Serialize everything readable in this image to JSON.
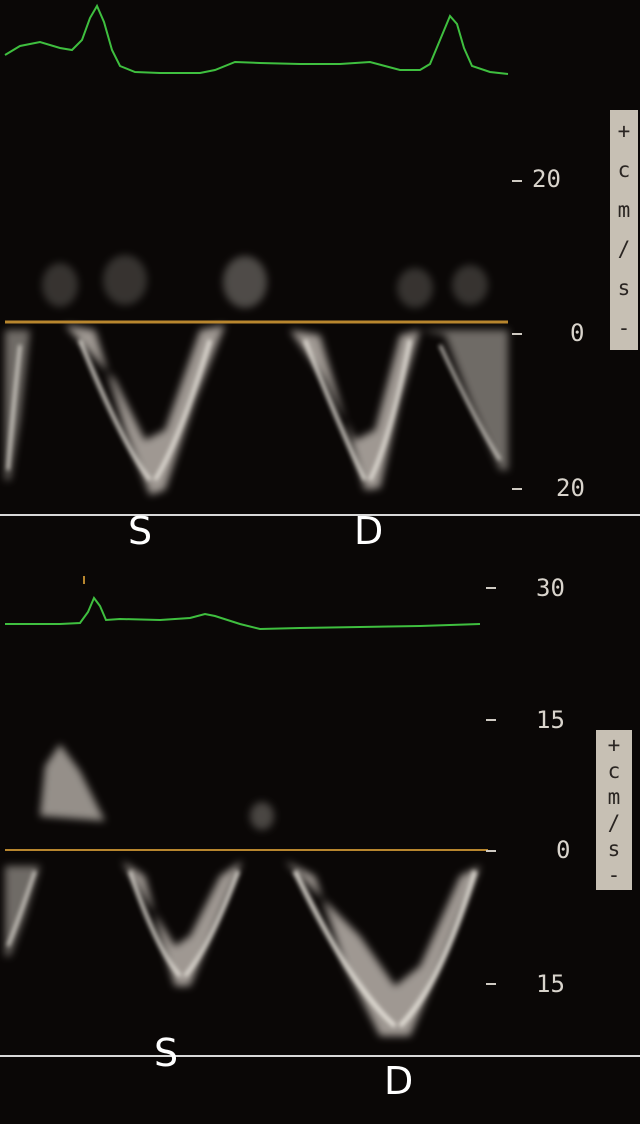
{
  "top_panel": {
    "scale": {
      "top": "20",
      "zero": "0",
      "bottom": "20"
    },
    "unit": [
      "+",
      "c",
      "m",
      "/",
      "s",
      "-"
    ],
    "labels": {
      "systolic": "S",
      "diastolic": "D"
    }
  },
  "bottom_panel": {
    "scale": {
      "top": "30",
      "upper": "15",
      "zero": "0",
      "lower": "15"
    },
    "unit": [
      "+",
      "c",
      "m",
      "/",
      "s",
      "-"
    ],
    "labels": {
      "systolic": "S",
      "diastolic": "D"
    }
  },
  "colors": {
    "background": "#0a0706",
    "ecg_trace": "#3fbf3f",
    "baseline": "#b8862e",
    "doppler_signal": "#d8d4cc",
    "unit_box": "#c7c0b4"
  }
}
